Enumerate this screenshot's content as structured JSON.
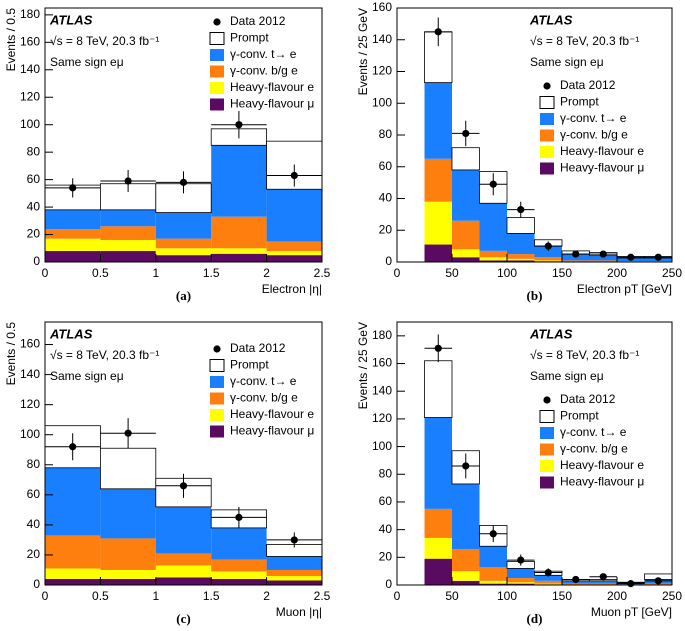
{
  "chart_data": [
    {
      "type": "histogram",
      "caption": "(a)",
      "x_label": "Electron |η|",
      "y_label": "Events / 0.5",
      "annotations": [
        "ATLAS",
        "√s = 8 TeV, 20.3 fb⁻¹",
        "Same sign eμ"
      ],
      "bins": [
        0,
        0.5,
        1,
        1.5,
        2,
        2.5
      ],
      "xlim": [
        0,
        2.5
      ],
      "xticks": [
        0,
        0.5,
        1,
        1.5,
        2,
        2.5
      ],
      "ylim": [
        0,
        185
      ],
      "yticks": [
        0,
        20,
        40,
        60,
        80,
        100,
        120,
        140,
        160,
        180
      ],
      "series": [
        {
          "name": "Heavy-flavour μ",
          "color": "#5a0a60",
          "values": [
            8,
            8,
            5,
            6,
            5
          ]
        },
        {
          "name": "Heavy-flavour e",
          "color": "#ffff00",
          "values": [
            9,
            8,
            5,
            4,
            3
          ]
        },
        {
          "name": "γ-conv. b/g e",
          "color": "#ff7f0e",
          "values": [
            7,
            10,
            7,
            23,
            7
          ]
        },
        {
          "name": "γ-conv. t→ e",
          "color": "#1a7fff",
          "values": [
            14,
            12,
            19,
            52,
            38
          ]
        },
        {
          "name": "Prompt",
          "color": "#ffffff",
          "values": [
            18,
            19,
            21,
            12,
            35
          ]
        }
      ],
      "data": {
        "name": "Data 2012",
        "values": [
          54,
          59,
          58,
          100,
          63
        ],
        "errors": [
          7,
          8,
          8,
          10,
          8
        ]
      }
    },
    {
      "type": "histogram",
      "caption": "(b)",
      "x_label": "Electron pT [GeV]",
      "y_label": "Events / 25 GeV",
      "annotations": [
        "ATLAS",
        "√s = 8 TeV, 20.3 fb⁻¹",
        "Same sign eμ"
      ],
      "bins": [
        25,
        50,
        75,
        100,
        125,
        150,
        175,
        200,
        225,
        250
      ],
      "xlim": [
        0,
        250
      ],
      "xticks": [
        0,
        50,
        100,
        150,
        200,
        250
      ],
      "ylim": [
        0,
        160
      ],
      "yticks": [
        0,
        20,
        40,
        60,
        80,
        100,
        120,
        140,
        160
      ],
      "series": [
        {
          "name": "Heavy-flavour μ",
          "color": "#5a0a60",
          "values": [
            11,
            3,
            1,
            1,
            0.5,
            0,
            0,
            0,
            0
          ]
        },
        {
          "name": "Heavy-flavour e",
          "color": "#ffff00",
          "values": [
            27,
            5,
            2,
            1,
            0.5,
            0,
            0,
            0,
            0
          ]
        },
        {
          "name": "γ-conv. b/g e",
          "color": "#ff7f0e",
          "values": [
            27,
            18,
            4,
            3,
            2,
            1,
            1,
            0.5,
            0.5
          ]
        },
        {
          "name": "γ-conv. t→ e",
          "color": "#1a7fff",
          "values": [
            48,
            32,
            30,
            13,
            7,
            4,
            3,
            2,
            2
          ]
        },
        {
          "name": "Prompt",
          "color": "#ffffff",
          "values": [
            32,
            14,
            20,
            10,
            4,
            2,
            2,
            1,
            1
          ]
        }
      ],
      "data": {
        "name": "Data 2012",
        "values": [
          145,
          81,
          49,
          33,
          10,
          5,
          5,
          3,
          3
        ],
        "errors": [
          9,
          8,
          7,
          5,
          3,
          2,
          2,
          2,
          2
        ]
      }
    },
    {
      "type": "histogram",
      "caption": "(c)",
      "x_label": "Muon |η|",
      "y_label": "Events / 0.5",
      "annotations": [
        "ATLAS",
        "√s = 8 TeV, 20.3 fb⁻¹",
        "Same sign eμ"
      ],
      "bins": [
        0,
        0.5,
        1,
        1.5,
        2,
        2.5
      ],
      "xlim": [
        0,
        2.5
      ],
      "xticks": [
        0,
        0.5,
        1,
        1.5,
        2,
        2.5
      ],
      "ylim": [
        0,
        175
      ],
      "yticks": [
        0,
        20,
        40,
        60,
        80,
        100,
        120,
        140,
        160
      ],
      "series": [
        {
          "name": "Heavy-flavour μ",
          "color": "#5a0a60",
          "values": [
            4,
            4,
            5,
            4,
            3
          ]
        },
        {
          "name": "Heavy-flavour e",
          "color": "#ffff00",
          "values": [
            7,
            6,
            8,
            5,
            3
          ]
        },
        {
          "name": "γ-conv. b/g e",
          "color": "#ff7f0e",
          "values": [
            22,
            21,
            8,
            8,
            4
          ]
        },
        {
          "name": "γ-conv. t→ e",
          "color": "#1a7fff",
          "values": [
            45,
            33,
            31,
            21,
            9
          ]
        },
        {
          "name": "Prompt",
          "color": "#ffffff",
          "values": [
            28,
            27,
            19,
            12,
            8
          ]
        }
      ],
      "data": {
        "name": "Data 2012",
        "values": [
          92,
          101,
          66,
          45,
          30
        ],
        "errors": [
          9,
          10,
          8,
          7,
          5
        ]
      }
    },
    {
      "type": "histogram",
      "caption": "(d)",
      "x_label": "Muon pT [GeV]",
      "y_label": "Events / 25 GeV",
      "annotations": [
        "ATLAS",
        "√s = 8 TeV, 20.3 fb⁻¹",
        "Same sign eμ"
      ],
      "bins": [
        25,
        50,
        75,
        100,
        125,
        150,
        175,
        200,
        225,
        250
      ],
      "xlim": [
        0,
        250
      ],
      "xticks": [
        0,
        50,
        100,
        150,
        200,
        250
      ],
      "ylim": [
        0,
        190
      ],
      "yticks": [
        0,
        20,
        40,
        60,
        80,
        100,
        120,
        140,
        160,
        180
      ],
      "series": [
        {
          "name": "Heavy-flavour μ",
          "color": "#5a0a60",
          "values": [
            19,
            3,
            1,
            1,
            0.5,
            0,
            0,
            0,
            0
          ]
        },
        {
          "name": "Heavy-flavour e",
          "color": "#ffff00",
          "values": [
            15,
            7,
            2,
            1,
            0.5,
            0,
            0,
            0,
            0
          ]
        },
        {
          "name": "γ-conv. b/g e",
          "color": "#ff7f0e",
          "values": [
            21,
            16,
            10,
            3,
            2,
            1,
            1,
            0.5,
            1
          ]
        },
        {
          "name": "γ-conv. t→ e",
          "color": "#1a7fff",
          "values": [
            66,
            47,
            15,
            7,
            4,
            2,
            2,
            1,
            3
          ]
        },
        {
          "name": "Prompt",
          "color": "#ffffff",
          "values": [
            41,
            24,
            15,
            5,
            3,
            1,
            1,
            0.5,
            4
          ]
        }
      ],
      "data": {
        "name": "Data 2012",
        "values": [
          171,
          86,
          37,
          18,
          9,
          4,
          6,
          1,
          3
        ],
        "errors": [
          10,
          9,
          6,
          4,
          3,
          2,
          2,
          1,
          2
        ]
      }
    }
  ]
}
